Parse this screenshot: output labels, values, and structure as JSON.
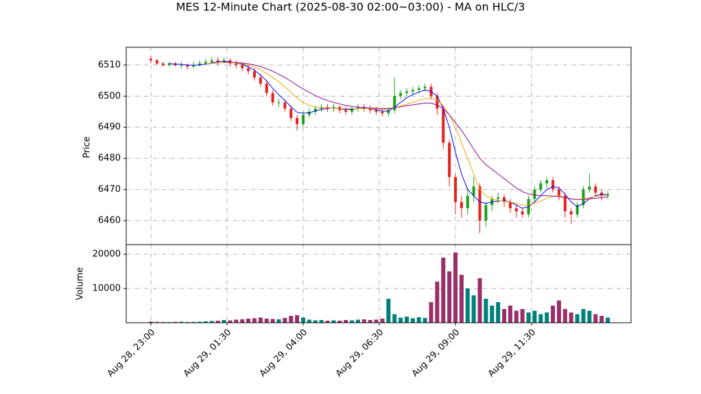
{
  "chart_data": {
    "type": "candlestick",
    "title": "MES 12-Minute Chart (2025-08-30 02:00~03:00) - MA on HLC/3",
    "ylabel": "Price",
    "x": [
      "Aug 28, 23:00",
      "Aug 28, 23:12",
      "Aug 28, 23:24",
      "Aug 28, 23:36",
      "Aug 28, 23:48",
      "Aug 29, 00:00",
      "Aug 29, 00:12",
      "Aug 29, 00:24",
      "Aug 29, 00:36",
      "Aug 29, 00:48",
      "Aug 29, 01:00",
      "Aug 29, 01:12",
      "Aug 29, 01:24",
      "Aug 29, 01:36",
      "Aug 29, 01:48",
      "Aug 29, 02:00",
      "Aug 29, 02:12",
      "Aug 29, 02:24",
      "Aug 29, 02:36",
      "Aug 29, 02:48",
      "Aug 29, 03:00",
      "Aug 29, 03:12",
      "Aug 29, 03:24",
      "Aug 29, 03:36",
      "Aug 29, 03:48",
      "Aug 29, 04:00",
      "Aug 29, 04:12",
      "Aug 29, 04:24",
      "Aug 29, 04:36",
      "Aug 29, 04:48",
      "Aug 29, 05:00",
      "Aug 29, 05:12",
      "Aug 29, 05:24",
      "Aug 29, 05:36",
      "Aug 29, 05:48",
      "Aug 29, 06:00",
      "Aug 29, 06:12",
      "Aug 29, 06:24",
      "Aug 29, 06:36",
      "Aug 29, 06:48",
      "Aug 29, 07:00",
      "Aug 29, 07:12",
      "Aug 29, 07:24",
      "Aug 29, 07:36",
      "Aug 29, 07:48",
      "Aug 29, 08:00",
      "Aug 29, 08:12",
      "Aug 29, 08:24",
      "Aug 29, 08:36",
      "Aug 29, 08:48",
      "Aug 29, 09:00",
      "Aug 29, 09:12",
      "Aug 29, 09:24",
      "Aug 29, 09:36",
      "Aug 29, 09:48",
      "Aug 29, 10:00",
      "Aug 29, 10:12",
      "Aug 29, 10:24",
      "Aug 29, 10:36",
      "Aug 29, 10:48",
      "Aug 29, 11:00",
      "Aug 29, 11:12",
      "Aug 29, 11:24",
      "Aug 29, 11:36",
      "Aug 29, 11:48",
      "Aug 29, 12:00",
      "Aug 29, 12:12",
      "Aug 29, 12:24",
      "Aug 29, 12:36",
      "Aug 29, 12:48",
      "Aug 29, 13:00",
      "Aug 29, 13:12",
      "Aug 29, 13:24",
      "Aug 29, 13:36",
      "Aug 29, 13:48",
      "Aug 29, 14:00"
    ],
    "open": [
      6512,
      6511.5,
      6510.5,
      6510,
      6510.5,
      6510,
      6510,
      6509.5,
      6510,
      6510.5,
      6511,
      6511.5,
      6511,
      6511.5,
      6510.5,
      6510,
      6509,
      6508,
      6506,
      6504,
      6501,
      6498,
      6498,
      6496,
      6493,
      6491,
      6494,
      6495,
      6496,
      6496.5,
      6496,
      6496.5,
      6495.5,
      6495,
      6496,
      6496.5,
      6496,
      6495.5,
      6495,
      6494.5,
      6495.5,
      6500,
      6501,
      6501.5,
      6502,
      6502.5,
      6503,
      6500,
      6496,
      6485,
      6474,
      6466,
      6464,
      6468,
      6471,
      6460,
      6465,
      6467,
      6467.5,
      6466,
      6464,
      6463,
      6462,
      6467,
      6470,
      6472,
      6473,
      6470,
      6468,
      6463,
      6462,
      6465,
      6470,
      6471,
      6469,
      6468
    ],
    "high": [
      6513,
      6512,
      6511,
      6511,
      6511,
      6511,
      6510.5,
      6511,
      6511.5,
      6512,
      6512.5,
      6512.5,
      6512.5,
      6512,
      6511.5,
      6511,
      6510,
      6509,
      6507,
      6505,
      6502,
      6499,
      6499,
      6497,
      6494,
      6495,
      6496,
      6497,
      6497.5,
      6497.5,
      6497.5,
      6497,
      6496.5,
      6497,
      6497.5,
      6497.5,
      6497,
      6496.5,
      6496,
      6496.5,
      6506,
      6502,
      6502.5,
      6503,
      6503.5,
      6504,
      6504,
      6501,
      6497,
      6486,
      6475,
      6468,
      6470,
      6474,
      6472,
      6466,
      6468,
      6469,
      6468.5,
      6467,
      6465,
      6464,
      6468,
      6471,
      6473,
      6474,
      6474,
      6471,
      6469,
      6464,
      6466,
      6471,
      6475,
      6472,
      6470,
      6469.5
    ],
    "low": [
      6510.5,
      6510,
      6509.5,
      6509.5,
      6509.5,
      6509,
      6508.5,
      6509,
      6509.5,
      6510,
      6510.5,
      6510,
      6510.5,
      6509.5,
      6509,
      6508,
      6507,
      6505,
      6503,
      6500,
      6497,
      6496.5,
      6495,
      6492,
      6489,
      6490,
      6493,
      6494,
      6495,
      6495,
      6495,
      6494.5,
      6494,
      6494,
      6495,
      6495,
      6494.5,
      6494,
      6493.5,
      6493.5,
      6494.5,
      6499,
      6500,
      6500.5,
      6501,
      6501.5,
      6499,
      6494,
      6483,
      6471,
      6462,
      6461,
      6462,
      6466,
      6456,
      6458,
      6463,
      6465.5,
      6464.5,
      6462.5,
      6461,
      6461,
      6461,
      6466,
      6469,
      6470.5,
      6469,
      6466.5,
      6461,
      6459,
      6461,
      6464,
      6469,
      6468,
      6466.5,
      6467
    ],
    "close": [
      6511.5,
      6510.5,
      6510,
      6510.5,
      6510,
      6510,
      6509.5,
      6510,
      6510.5,
      6511,
      6511.5,
      6511,
      6511.5,
      6510.5,
      6510,
      6509,
      6508,
      6506,
      6504,
      6501,
      6498,
      6498,
      6496,
      6493,
      6491,
      6494,
      6495,
      6496,
      6496.5,
      6496,
      6496.5,
      6495.5,
      6495,
      6496,
      6496.5,
      6496,
      6495.5,
      6495,
      6494.5,
      6495.5,
      6500,
      6501,
      6501.5,
      6502,
      6502.5,
      6503,
      6500,
      6496,
      6485,
      6474,
      6466,
      6464,
      6468,
      6471,
      6460,
      6465,
      6467,
      6467.5,
      6466,
      6464,
      6463,
      6462,
      6467,
      6470,
      6472,
      6473,
      6470,
      6468,
      6463,
      6462,
      6465,
      6470,
      6471,
      6469,
      6468,
      6468.5
    ],
    "up_color": "#1aa01a",
    "down_color": "#e8201f",
    "ylim": [
      6452.3,
      6515.7
    ],
    "yticks": [
      6460,
      6470,
      6480,
      6490,
      6500,
      6510
    ],
    "xticks": [
      "Aug 28, 23:00",
      "Aug 29, 01:30",
      "Aug 29, 04:00",
      "Aug 29, 06:30",
      "Aug 29, 09:00",
      "Aug 29, 11:30"
    ],
    "grid": true,
    "moving_averages": [
      {
        "color": "#0000ee",
        "values": [
          null,
          null,
          null,
          6510.5,
          6510.3,
          6510.2,
          6510,
          6509.9,
          6510,
          6510.3,
          6510.7,
          6511,
          6511.2,
          6511,
          6510.7,
          6510.2,
          6509.4,
          6508.3,
          6506.8,
          6504.9,
          6502.5,
          6500.5,
          6498.6,
          6496.6,
          6494.8,
          6494.5,
          6494.7,
          6495.2,
          6495.8,
          6496,
          6496.2,
          6496,
          6495.7,
          6495.8,
          6496,
          6496.1,
          6496,
          6495.6,
          6495.2,
          6495.2,
          6496.5,
          6498,
          6499.5,
          6500.5,
          6501.3,
          6502,
          6501.5,
          6500,
          6496,
          6490,
          6482,
          6475,
          6470,
          6468,
          6466,
          6465.5,
          6466,
          6466.3,
          6466.5,
          6466,
          6465,
          6464,
          6464.5,
          6466,
          6468,
          6470,
          6471,
          6470.5,
          6468.5,
          6466,
          6464.5,
          6465.5,
          6467,
          6468,
          6468.5,
          6468.3
        ]
      },
      {
        "color": "#f5a300",
        "values": [
          null,
          null,
          null,
          null,
          null,
          null,
          null,
          null,
          null,
          6510.4,
          6510.5,
          6510.6,
          6510.8,
          6510.8,
          6510.7,
          6510.4,
          6510,
          6509.3,
          6508.4,
          6507.3,
          6506,
          6504.6,
          6503,
          6501.2,
          6499.4,
          6498,
          6497,
          6496.5,
          6496.3,
          6496.2,
          6496.1,
          6496,
          6496,
          6496,
          6496,
          6496,
          6496,
          6495.9,
          6495.8,
          6495.8,
          6496.3,
          6496.8,
          6497.4,
          6498,
          6498.6,
          6499.2,
          6499.3,
          6498.8,
          6497,
          6494,
          6490,
          6485,
          6480,
          6475,
          6470,
          6468,
          6467,
          6466.5,
          6466.3,
          6466,
          6465.5,
          6465,
          6465,
          6465.5,
          6466.3,
          6467.2,
          6467.8,
          6468,
          6467.5,
          6467,
          6466.8,
          6467,
          6467.4,
          6467.8,
          6468,
          6468.2
        ]
      },
      {
        "color": "#8b0a8b",
        "values": [
          null,
          null,
          null,
          null,
          null,
          null,
          null,
          null,
          null,
          null,
          null,
          null,
          6511,
          6510.9,
          6510.8,
          6510.6,
          6510.4,
          6510,
          6509.5,
          6508.8,
          6508,
          6507,
          6506,
          6504.8,
          6503.5,
          6502.3,
          6501.2,
          6500.2,
          6499.3,
          6498.6,
          6498,
          6497.5,
          6497,
          6496.7,
          6496.5,
          6496.3,
          6496.2,
          6496.1,
          6496,
          6496,
          6496.3,
          6496.6,
          6496.9,
          6497.2,
          6497.5,
          6497.8,
          6497.7,
          6497.2,
          6496,
          6494,
          6491.5,
          6489,
          6486,
          6483,
          6480,
          6478,
          6476.5,
          6475,
          6473.5,
          6472,
          6470.5,
          6469.3,
          6468.6,
          6468.2,
          6468,
          6468,
          6467.9,
          6467.7,
          6467.4,
          6467,
          6466.8,
          6466.8,
          6467,
          6467.2,
          6467.4,
          6467.6
        ]
      }
    ],
    "volume": {
      "ylabel": "Volume",
      "values": [
        300,
        250,
        200,
        200,
        250,
        300,
        200,
        250,
        300,
        400,
        500,
        600,
        800,
        700,
        900,
        1000,
        1200,
        1300,
        1500,
        1200,
        1100,
        1000,
        1400,
        2000,
        2200,
        1500,
        900,
        700,
        800,
        600,
        700,
        600,
        800,
        700,
        900,
        1000,
        800,
        900,
        1200,
        7000,
        2500,
        1500,
        1800,
        1300,
        1600,
        1400,
        6000,
        12000,
        19000,
        15000,
        20500,
        14000,
        10000,
        8000,
        13000,
        7000,
        5000,
        6000,
        4000,
        5000,
        3500,
        4000,
        3000,
        3500,
        2500,
        3000,
        5000,
        6500,
        4000,
        3000,
        2500,
        4000,
        3500,
        2500,
        2000,
        1500
      ],
      "up_color": "#00807a",
      "down_color": "#9a2e68",
      "ylim": [
        0,
        22800
      ],
      "yticks": [
        10000,
        20000
      ]
    }
  }
}
